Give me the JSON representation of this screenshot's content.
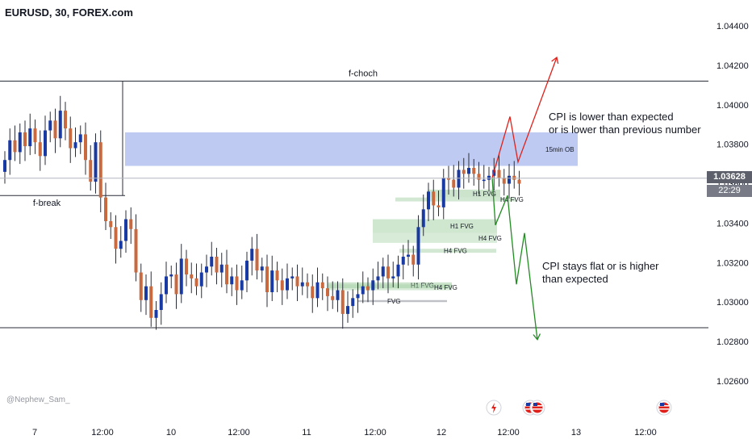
{
  "title": "EURUSD, 30, FOREX.com",
  "watermark": "@Nephew_Sam_",
  "current_price": "1.03628",
  "countdown": "22:29",
  "colors": {
    "up_candle": "#1a3aa3",
    "down_candle": "#c9693f",
    "wick": "#2a2e39",
    "ob_zone": "#aab8ee",
    "fvg_zone": "#a8d2a8",
    "bullish_path": "#e0201a",
    "bearish_path": "#228b22",
    "axis_text": "#131722"
  },
  "chart_data": {
    "type": "candlestick",
    "symbol": "EURUSD",
    "timeframe": "30",
    "y_axis": {
      "ylim": [
        1.0245,
        1.0458
      ],
      "ticks": [
        "1.04400",
        "1.04200",
        "1.04000",
        "1.03800",
        "1.03600",
        "1.03400",
        "1.03200",
        "1.03000",
        "1.02800",
        "1.02600"
      ]
    },
    "x_axis": {
      "ticks": [
        "7",
        "12:00",
        "10",
        "12:00",
        "11",
        "12:00",
        "12",
        "12:00",
        "13",
        "12:00"
      ]
    },
    "close_path": [
      1.0372,
      1.0382,
      1.0376,
      1.0386,
      1.0379,
      1.0388,
      1.0381,
      1.0374,
      1.0387,
      1.0392,
      1.0383,
      1.0397,
      1.0388,
      1.0378,
      1.0381,
      1.0385,
      1.0372,
      1.0361,
      1.0381,
      1.0353,
      1.0341,
      1.0338,
      1.0327,
      1.0331,
      1.0342,
      1.0337,
      1.0315,
      1.0301,
      1.0308,
      1.0292,
      1.0296,
      1.0304,
      1.0313,
      1.0314,
      1.0304,
      1.0322,
      1.0314,
      1.0312,
      1.0308,
      1.0315,
      1.0318,
      1.0323,
      1.0315,
      1.0319,
      1.0309,
      1.0313,
      1.0306,
      1.0311,
      1.0321,
      1.0327,
      1.0316,
      1.0318,
      1.0305,
      1.0316,
      1.0311,
      1.0306,
      1.0312,
      1.0313,
      1.0308,
      1.031,
      1.0308,
      1.0302,
      1.031,
      1.0307,
      1.0303,
      1.0301,
      1.0306,
      1.0294,
      1.0298,
      1.0302,
      1.0304,
      1.0308,
      1.0306,
      1.0311,
      1.0313,
      1.0318,
      1.0312,
      1.0313,
      1.0319,
      1.0323,
      1.0324,
      1.0319,
      1.0338,
      1.0347,
      1.0356,
      1.0349,
      1.0348,
      1.0363,
      1.0362,
      1.0358,
      1.0367,
      1.0365,
      1.0368,
      1.0365,
      1.0362,
      1.0362,
      1.0364,
      1.0367,
      1.0363,
      1.036,
      1.0364,
      1.0362,
      1.036
    ],
    "levels": [
      {
        "label": "f-choch",
        "price": 1.0412
      },
      {
        "label": "f-break",
        "price": 1.0354
      },
      {
        "label": "",
        "price": 1.0287
      }
    ],
    "zones": [
      {
        "label": "15min OB",
        "top": 1.0386,
        "bottom": 1.0369
      },
      {
        "label": "H1 FVG",
        "top": 1.0357,
        "bottom": 1.0353
      },
      {
        "label": "H4 FVG",
        "top": 1.0353,
        "bottom": 1.0351
      },
      {
        "label": "H1 FVG",
        "top": 1.0342,
        "bottom": 1.0335
      },
      {
        "label": "H4 FVG",
        "top": 1.0335,
        "bottom": 1.033
      },
      {
        "label": "H4 FVG",
        "top": 1.0327,
        "bottom": 1.0325
      },
      {
        "label": "H1 FVG",
        "top": 1.031,
        "bottom": 1.0307
      },
      {
        "label": "H4 FVG",
        "top": 1.0309,
        "bottom": 1.0306
      },
      {
        "label": "FVG",
        "top": 1.0301,
        "bottom": 1.03
      }
    ],
    "annotations": [
      {
        "text": "CPI is lower than expected",
        "color": "#131722"
      },
      {
        "text": "or is lower than previous number",
        "color": "#131722"
      },
      {
        "text": "CPI stays flat or is higher",
        "color": "#131722"
      },
      {
        "text": "than expected",
        "color": "#131722"
      }
    ],
    "projections": [
      {
        "direction": "bullish",
        "prices": [
          1.0363,
          1.0394,
          1.0371,
          1.0424
        ],
        "color": "#e0201a"
      },
      {
        "direction": "bearish",
        "prices": [
          1.0363,
          1.0339,
          1.0354,
          1.0309,
          1.0335,
          1.0281
        ],
        "color": "#228b22"
      }
    ]
  }
}
